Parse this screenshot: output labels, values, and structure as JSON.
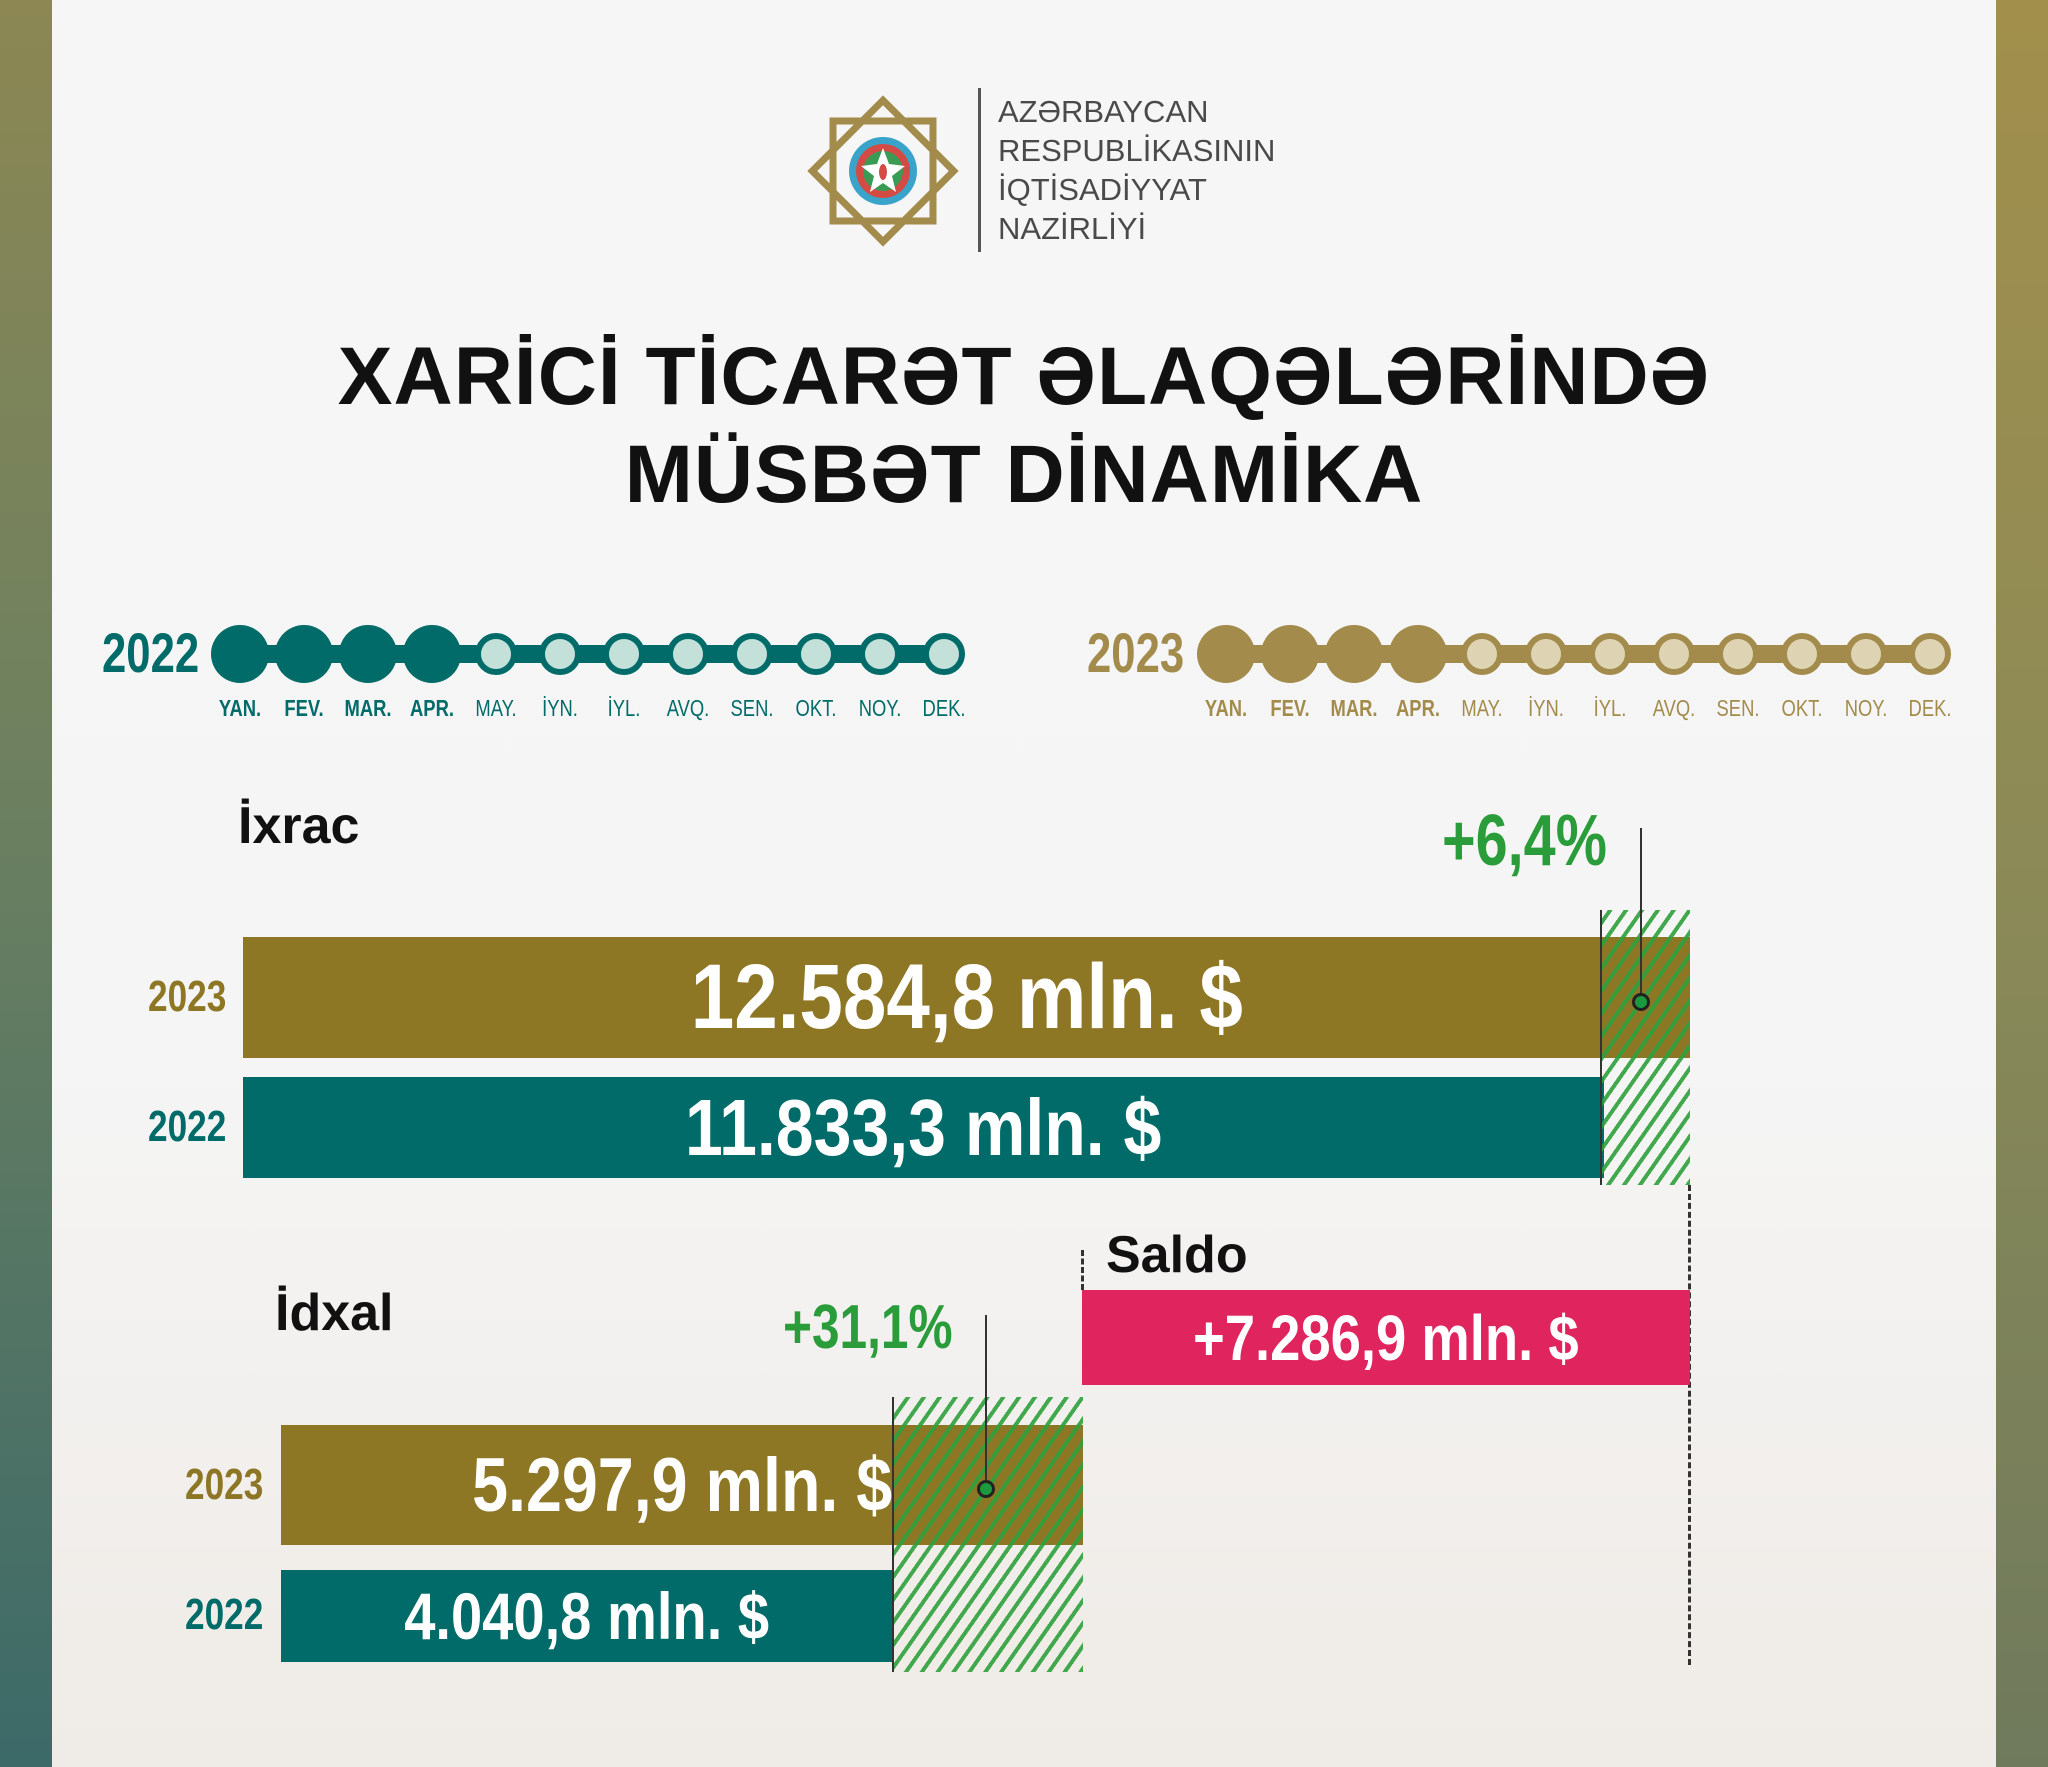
{
  "colors": {
    "y2022": "#006b68",
    "y2023": "#8d7624",
    "y2022_light": "#c3e1d9",
    "y2023_light": "#ded4b4",
    "growth": "#2a9c3a",
    "saldo": "#e0245e"
  },
  "logo": {
    "lines": [
      "AZƏRBAYCAN",
      "RESPUBLİKASININ",
      "İQTİSADİYYAT",
      "NAZİRLİYİ"
    ],
    "icon": "ministry-emblem-icon"
  },
  "title": {
    "line1": "XARİCİ TİCARƏT ƏLAQƏLƏRİNDƏ",
    "line2": "MÜSBƏT DİNAMİKA"
  },
  "timelines": [
    {
      "year": "2022",
      "months": [
        "YAN.",
        "FEV.",
        "MAR.",
        "APR.",
        "MAY.",
        "İYN.",
        "İYL.",
        "AVQ.",
        "SEN.",
        "OKT.",
        "NOY.",
        "DEK."
      ],
      "months_covered": 4
    },
    {
      "year": "2023",
      "months": [
        "YAN.",
        "FEV.",
        "MAR.",
        "APR.",
        "MAY.",
        "İYN.",
        "İYL.",
        "AVQ.",
        "SEN.",
        "OKT.",
        "NOY.",
        "DEK."
      ],
      "months_covered": 4
    }
  ],
  "chart_data": [
    {
      "type": "bar",
      "title": "İxrac",
      "categories": [
        "2023",
        "2022"
      ],
      "values": [
        12584.8,
        11833.3
      ],
      "labels": [
        "12.584,8 mln. $",
        "11.833,3 mln. $"
      ],
      "change": "+6,4%"
    },
    {
      "type": "bar",
      "title": "İdxal",
      "categories": [
        "2023",
        "2022"
      ],
      "values": [
        5297.9,
        4040.8
      ],
      "labels": [
        "5.297,9 mln. $",
        "4.040,8 mln. $"
      ],
      "change": "+31,1%"
    },
    {
      "type": "bar",
      "title": "Saldo",
      "values": [
        7286.9
      ],
      "labels": [
        "+7.286,9 mln. $"
      ]
    }
  ]
}
